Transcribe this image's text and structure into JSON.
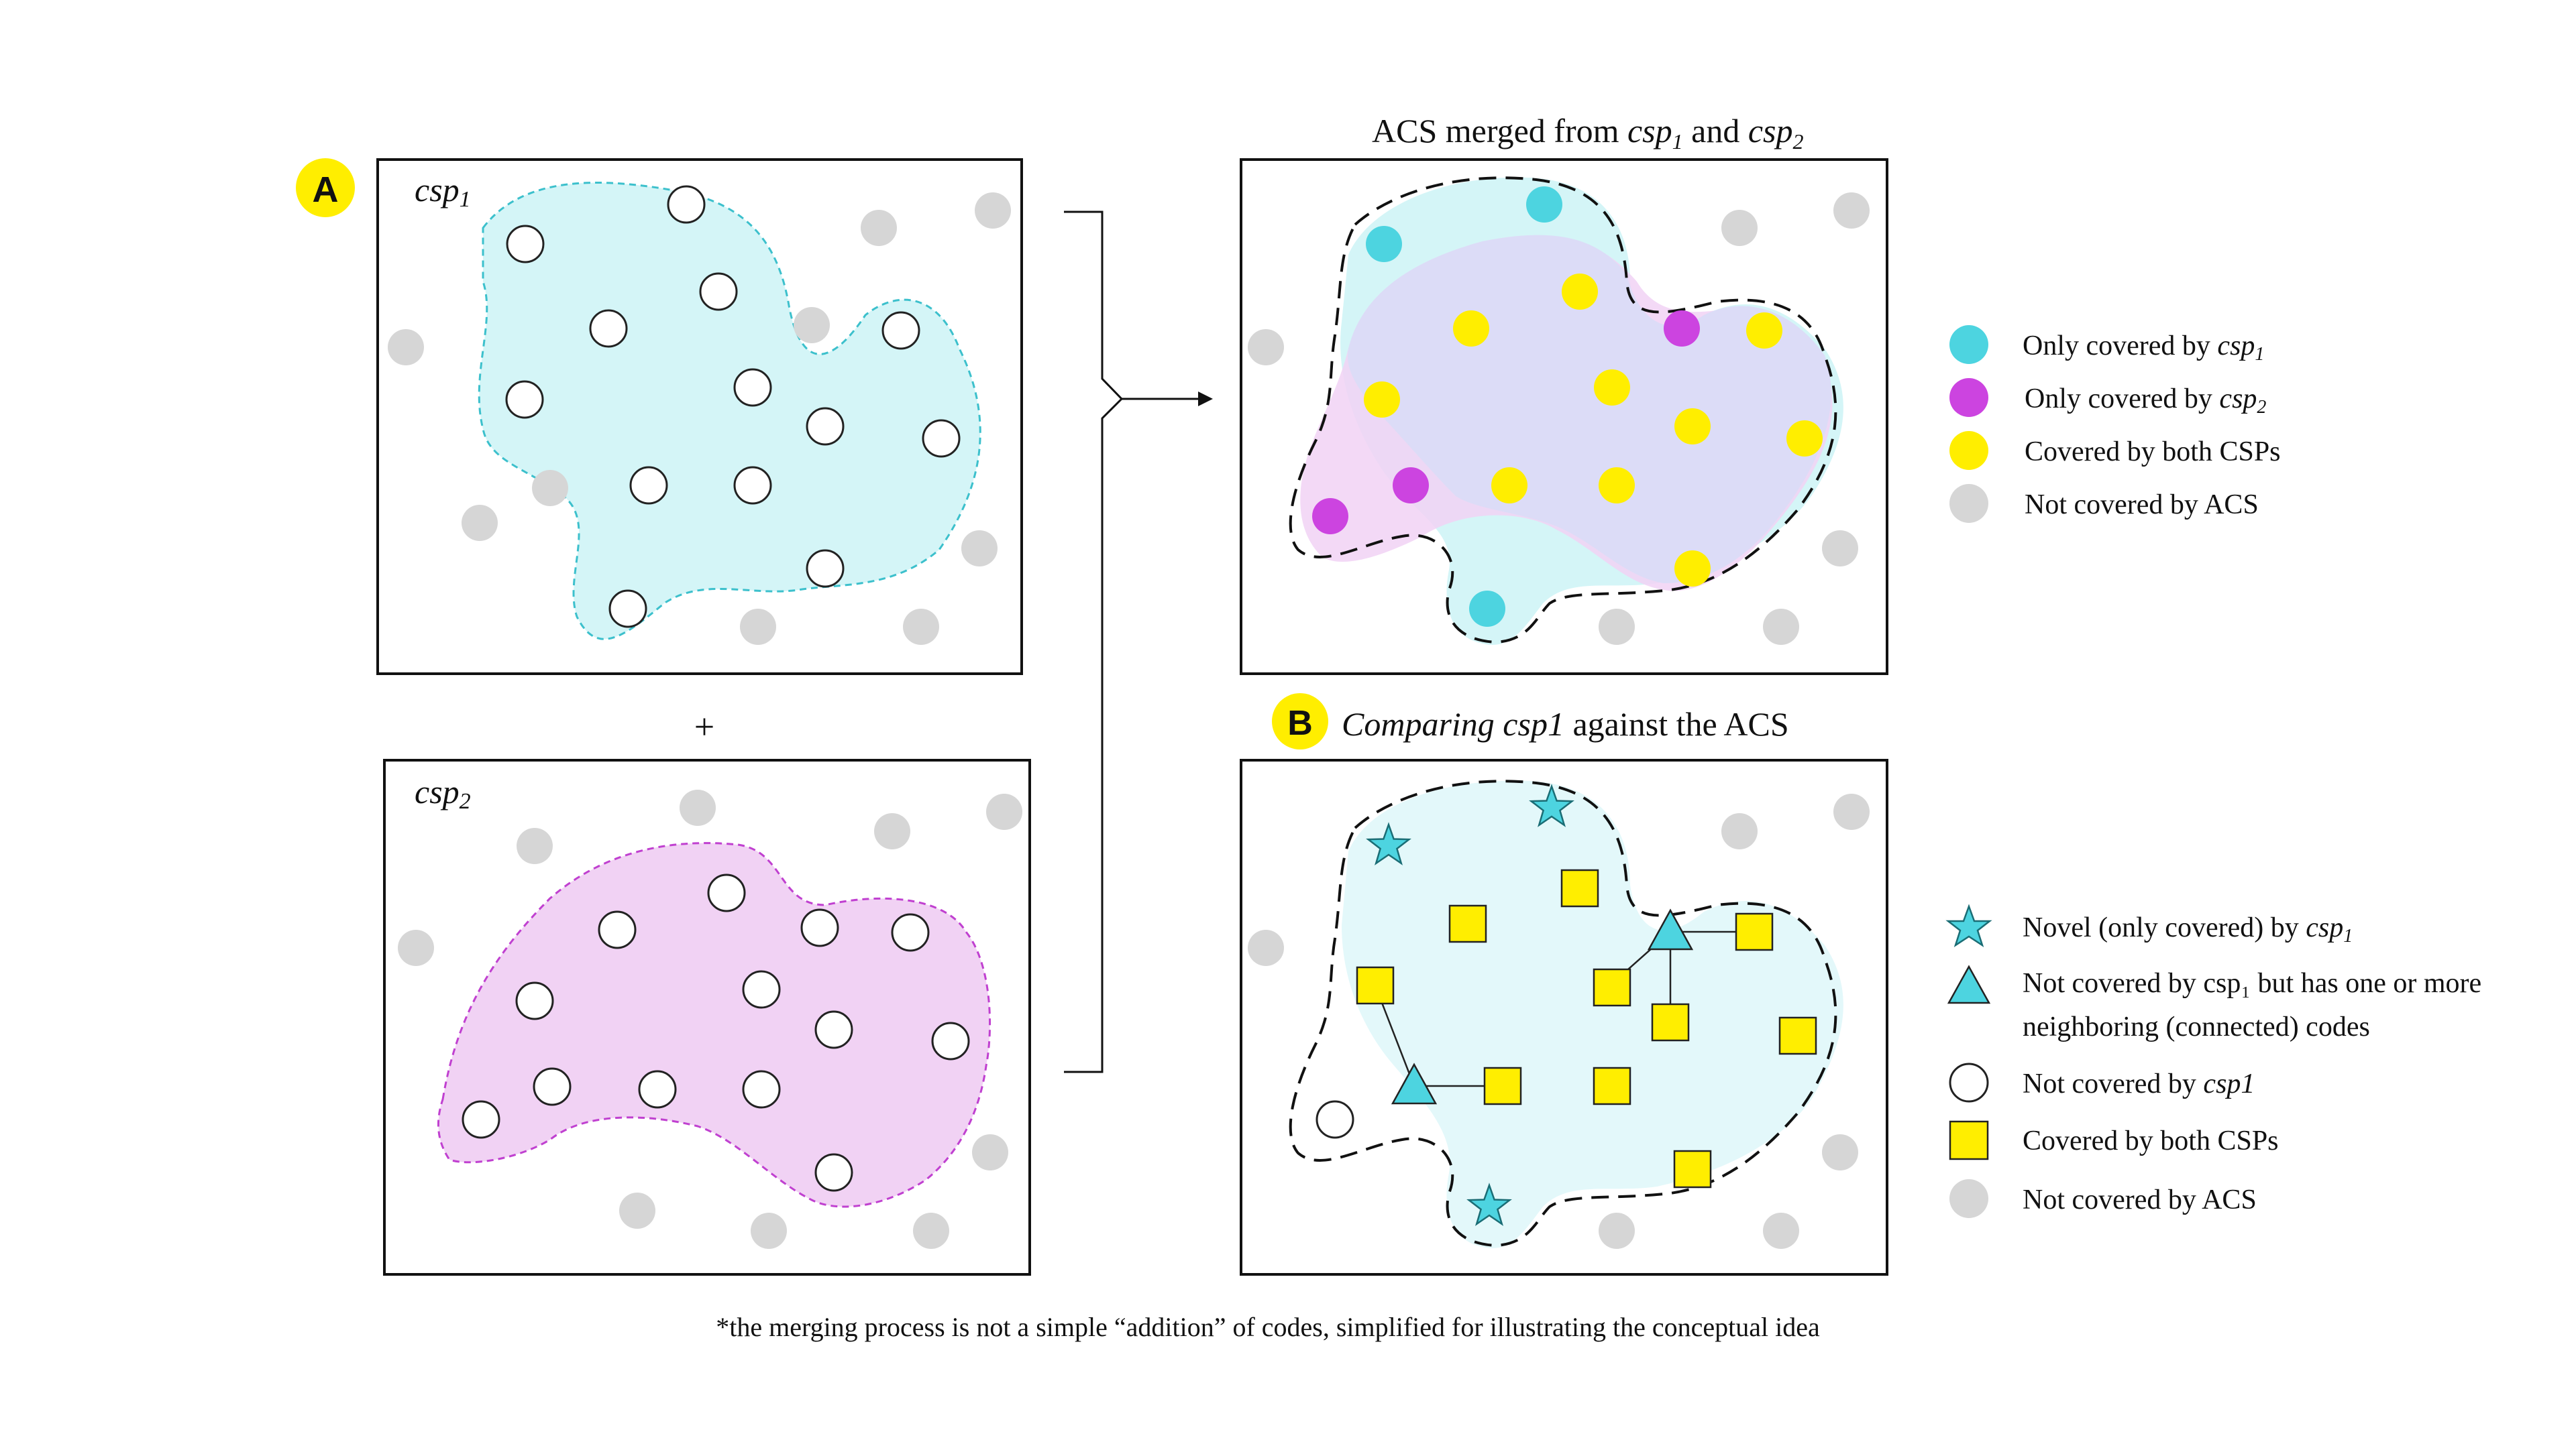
{
  "panel_labels": {
    "a": "A",
    "b": "B"
  },
  "plus_sign": "+",
  "csp1_title": {
    "name": "csp",
    "sub": "1"
  },
  "csp2_title": {
    "name": "csp",
    "sub": "2"
  },
  "acs_title": {
    "prefix": "ACS merged from ",
    "csp1_name": "csp",
    "csp1_sub": "1",
    "join": " and ",
    "csp2_name": "csp",
    "csp2_sub": "2"
  },
  "compare_title": {
    "italic": "Comparing csp1",
    "rest": " against the ACS"
  },
  "legend_top": [
    {
      "text": "Only covered by ",
      "italic": "csp",
      "sub": "1"
    },
    {
      "text": "Only covered by ",
      "italic": "csp",
      "sub": "2"
    },
    {
      "text": "Covered by both CSPs",
      "italic": "",
      "sub": ""
    },
    {
      "text": "Not covered by ACS",
      "italic": "",
      "sub": ""
    }
  ],
  "legend_bottom": {
    "novel": {
      "text": "Novel (only covered) by ",
      "italic": "csp",
      "sub": "1"
    },
    "neighbor_line1": "Not covered by csp₁ but has one or more",
    "neighbor_line2": "neighboring (connected) codes",
    "not_csp1": {
      "text": "Not covered by ",
      "italic": "csp1"
    },
    "both": "Covered by both CSPs",
    "not_acs": "Not covered by ACS"
  },
  "footnote": "*the merging process is not a simple “addition” of codes, simplified for illustrating the conceptual idea",
  "colors": {
    "cyan_fill": "#d4f5f7",
    "cyan_marker": "#4dd4e0",
    "magenta_fill": "#f1d2f4",
    "magenta_marker": "#cc44e0",
    "yellow": "#ffee00",
    "overlap_fill": "#dcdcf7",
    "grey_dot": "#d6d6d6",
    "label_badge": "#ffee00"
  },
  "icons": [
    "circle-marker",
    "star-marker",
    "triangle-marker",
    "square-marker",
    "arrow-icon",
    "bracket-connector"
  ]
}
